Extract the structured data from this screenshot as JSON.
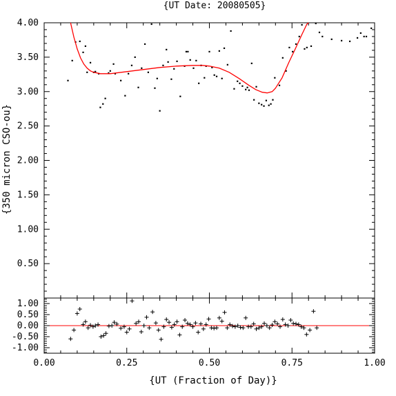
{
  "chart_data": [
    {
      "type": "scatter",
      "title": "{UT Date: 20080505}",
      "xlabel": "",
      "ylabel": "{350 micron CSO-ou}",
      "xlim": [
        0.0,
        1.0
      ],
      "ylim": [
        0.0,
        4.0
      ],
      "yticks": [
        "0.50",
        "1.00",
        "1.50",
        "2.00",
        "2.50",
        "3.00",
        "3.50",
        "4.00"
      ],
      "grid": false,
      "series": [
        {
          "kind": "points",
          "color": "#000000",
          "points": [
            [
              0.072,
              3.16
            ],
            [
              0.085,
              3.45
            ],
            [
              0.095,
              3.72
            ],
            [
              0.108,
              3.73
            ],
            [
              0.118,
              3.57
            ],
            [
              0.125,
              3.66
            ],
            [
              0.13,
              3.28
            ],
            [
              0.14,
              3.42
            ],
            [
              0.15,
              3.28
            ],
            [
              0.155,
              3.29
            ],
            [
              0.165,
              3.26
            ],
            [
              0.17,
              2.77
            ],
            [
              0.178,
              2.82
            ],
            [
              0.185,
              2.9
            ],
            [
              0.195,
              3.27
            ],
            [
              0.2,
              3.3
            ],
            [
              0.21,
              3.4
            ],
            [
              0.215,
              3.26
            ],
            [
              0.232,
              3.16
            ],
            [
              0.245,
              2.94
            ],
            [
              0.255,
              3.26
            ],
            [
              0.265,
              3.38
            ],
            [
              0.275,
              3.5
            ],
            [
              0.285,
              3.06
            ],
            [
              0.295,
              3.34
            ],
            [
              0.305,
              3.69
            ],
            [
              0.315,
              3.28
            ],
            [
              0.325,
              3.98
            ],
            [
              0.335,
              3.05
            ],
            [
              0.342,
              3.19
            ],
            [
              0.35,
              2.72
            ],
            [
              0.36,
              3.38
            ],
            [
              0.37,
              3.61
            ],
            [
              0.375,
              3.43
            ],
            [
              0.385,
              3.18
            ],
            [
              0.393,
              3.33
            ],
            [
              0.402,
              3.44
            ],
            [
              0.412,
              2.93
            ],
            [
              0.425,
              3.37
            ],
            [
              0.43,
              3.58
            ],
            [
              0.435,
              3.58
            ],
            [
              0.442,
              3.46
            ],
            [
              0.452,
              3.34
            ],
            [
              0.46,
              3.45
            ],
            [
              0.468,
              3.12
            ],
            [
              0.475,
              3.38
            ],
            [
              0.485,
              3.2
            ],
            [
              0.49,
              3.37
            ],
            [
              0.5,
              3.58
            ],
            [
              0.508,
              3.35
            ],
            [
              0.515,
              3.24
            ],
            [
              0.522,
              3.22
            ],
            [
              0.53,
              3.59
            ],
            [
              0.538,
              3.19
            ],
            [
              0.545,
              3.63
            ],
            [
              0.555,
              3.39
            ],
            [
              0.565,
              3.88
            ],
            [
              0.575,
              3.04
            ],
            [
              0.585,
              3.15
            ],
            [
              0.592,
              3.12
            ],
            [
              0.6,
              3.08
            ],
            [
              0.61,
              3.03
            ],
            [
              0.615,
              3.06
            ],
            [
              0.62,
              3.02
            ],
            [
              0.628,
              3.41
            ],
            [
              0.635,
              2.88
            ],
            [
              0.642,
              3.07
            ],
            [
              0.65,
              2.83
            ],
            [
              0.658,
              2.81
            ],
            [
              0.665,
              2.79
            ],
            [
              0.672,
              2.87
            ],
            [
              0.68,
              2.8
            ],
            [
              0.686,
              2.82
            ],
            [
              0.692,
              2.88
            ],
            [
              0.698,
              3.2
            ],
            [
              0.712,
              3.09
            ],
            [
              0.722,
              3.49
            ],
            [
              0.732,
              3.3
            ],
            [
              0.742,
              3.64
            ],
            [
              0.752,
              3.58
            ],
            [
              0.762,
              3.69
            ],
            [
              0.772,
              3.8
            ],
            [
              0.78,
              3.97
            ],
            [
              0.788,
              3.62
            ],
            [
              0.795,
              3.64
            ],
            [
              0.808,
              3.66
            ],
            [
              0.822,
              3.99
            ],
            [
              0.833,
              3.86
            ],
            [
              0.842,
              3.8
            ],
            [
              0.87,
              3.76
            ],
            [
              0.9,
              3.74
            ],
            [
              0.925,
              3.73
            ],
            [
              0.948,
              3.78
            ],
            [
              0.958,
              3.85
            ],
            [
              0.968,
              3.8
            ],
            [
              0.975,
              3.8
            ],
            [
              0.99,
              3.92
            ]
          ]
        },
        {
          "kind": "fit",
          "color": "#ff0000",
          "points": [
            [
              0.08,
              4.01
            ],
            [
              0.09,
              3.79
            ],
            [
              0.1,
              3.62
            ],
            [
              0.11,
              3.49
            ],
            [
              0.12,
              3.4
            ],
            [
              0.13,
              3.34
            ],
            [
              0.14,
              3.3
            ],
            [
              0.15,
              3.28
            ],
            [
              0.17,
              3.26
            ],
            [
              0.2,
              3.26
            ],
            [
              0.25,
              3.29
            ],
            [
              0.3,
              3.32
            ],
            [
              0.35,
              3.35
            ],
            [
              0.4,
              3.37
            ],
            [
              0.45,
              3.38
            ],
            [
              0.48,
              3.38
            ],
            [
              0.5,
              3.37
            ],
            [
              0.53,
              3.34
            ],
            [
              0.56,
              3.28
            ],
            [
              0.59,
              3.19
            ],
            [
              0.62,
              3.09
            ],
            [
              0.64,
              3.03
            ],
            [
              0.66,
              2.99
            ],
            [
              0.675,
              2.98
            ],
            [
              0.69,
              3.0
            ],
            [
              0.7,
              3.05
            ],
            [
              0.72,
              3.2
            ],
            [
              0.74,
              3.42
            ],
            [
              0.76,
              3.62
            ],
            [
              0.78,
              3.83
            ],
            [
              0.795,
              3.98
            ],
            [
              0.8,
              4.02
            ]
          ]
        }
      ]
    },
    {
      "type": "scatter",
      "title": "",
      "xlabel": "{UT (Fraction of Day)}",
      "ylabel": "",
      "xlim": [
        0.0,
        1.0
      ],
      "ylim": [
        -1.25,
        1.25
      ],
      "xticks": [
        "0.00",
        "0.25",
        "0.50",
        "0.75",
        "1.00"
      ],
      "yticks": [
        "-1.00",
        "-0.50",
        "0.00",
        "0.50",
        "1.00"
      ],
      "grid": false,
      "series": [
        {
          "kind": "residuals",
          "color": "#000000",
          "points": [
            [
              0.08,
              -0.6
            ],
            [
              0.09,
              -0.2
            ],
            [
              0.1,
              0.55
            ],
            [
              0.108,
              0.75
            ],
            [
              0.118,
              0.05
            ],
            [
              0.125,
              0.18
            ],
            [
              0.133,
              -0.1
            ],
            [
              0.14,
              0.02
            ],
            [
              0.148,
              -0.05
            ],
            [
              0.155,
              0.0
            ],
            [
              0.163,
              0.05
            ],
            [
              0.172,
              -0.5
            ],
            [
              0.18,
              -0.45
            ],
            [
              0.187,
              -0.35
            ],
            [
              0.196,
              -0.02
            ],
            [
              0.205,
              0.0
            ],
            [
              0.212,
              0.15
            ],
            [
              0.22,
              0.07
            ],
            [
              0.232,
              -0.12
            ],
            [
              0.242,
              -0.05
            ],
            [
              0.25,
              -0.3
            ],
            [
              0.258,
              -0.15
            ],
            [
              0.266,
              1.12
            ],
            [
              0.278,
              0.1
            ],
            [
              0.286,
              0.18
            ],
            [
              0.294,
              -0.28
            ],
            [
              0.302,
              0.0
            ],
            [
              0.31,
              0.38
            ],
            [
              0.318,
              -0.1
            ],
            [
              0.328,
              0.62
            ],
            [
              0.338,
              0.12
            ],
            [
              0.346,
              -0.2
            ],
            [
              0.354,
              -0.62
            ],
            [
              0.362,
              -0.05
            ],
            [
              0.37,
              0.28
            ],
            [
              0.378,
              0.15
            ],
            [
              0.386,
              -0.08
            ],
            [
              0.394,
              0.05
            ],
            [
              0.402,
              0.18
            ],
            [
              0.41,
              -0.42
            ],
            [
              0.418,
              -0.05
            ],
            [
              0.426,
              0.25
            ],
            [
              0.434,
              0.1
            ],
            [
              0.442,
              0.05
            ],
            [
              0.45,
              -0.05
            ],
            [
              0.458,
              0.12
            ],
            [
              0.466,
              -0.3
            ],
            [
              0.474,
              0.08
            ],
            [
              0.482,
              -0.15
            ],
            [
              0.49,
              0.05
            ],
            [
              0.498,
              0.3
            ],
            [
              0.506,
              -0.1
            ],
            [
              0.514,
              -0.12
            ],
            [
              0.522,
              -0.1
            ],
            [
              0.53,
              0.35
            ],
            [
              0.538,
              0.2
            ],
            [
              0.546,
              0.6
            ],
            [
              0.554,
              -0.1
            ],
            [
              0.562,
              0.05
            ],
            [
              0.57,
              -0.02
            ],
            [
              0.578,
              -0.05
            ],
            [
              0.586,
              0.0
            ],
            [
              0.594,
              -0.08
            ],
            [
              0.602,
              -0.1
            ],
            [
              0.61,
              0.35
            ],
            [
              0.618,
              -0.05
            ],
            [
              0.626,
              -0.05
            ],
            [
              0.634,
              0.08
            ],
            [
              0.642,
              -0.15
            ],
            [
              0.65,
              -0.1
            ],
            [
              0.658,
              -0.05
            ],
            [
              0.666,
              0.1
            ],
            [
              0.674,
              0.0
            ],
            [
              0.682,
              -0.1
            ],
            [
              0.69,
              0.03
            ],
            [
              0.698,
              0.18
            ],
            [
              0.706,
              0.08
            ],
            [
              0.714,
              -0.05
            ],
            [
              0.722,
              0.28
            ],
            [
              0.73,
              0.05
            ],
            [
              0.738,
              0.0
            ],
            [
              0.746,
              0.25
            ],
            [
              0.754,
              0.1
            ],
            [
              0.762,
              0.08
            ],
            [
              0.77,
              0.05
            ],
            [
              0.778,
              -0.05
            ],
            [
              0.786,
              -0.1
            ],
            [
              0.794,
              -0.4
            ],
            [
              0.804,
              -0.2
            ],
            [
              0.815,
              0.65
            ],
            [
              0.825,
              -0.1
            ]
          ]
        }
      ]
    }
  ]
}
